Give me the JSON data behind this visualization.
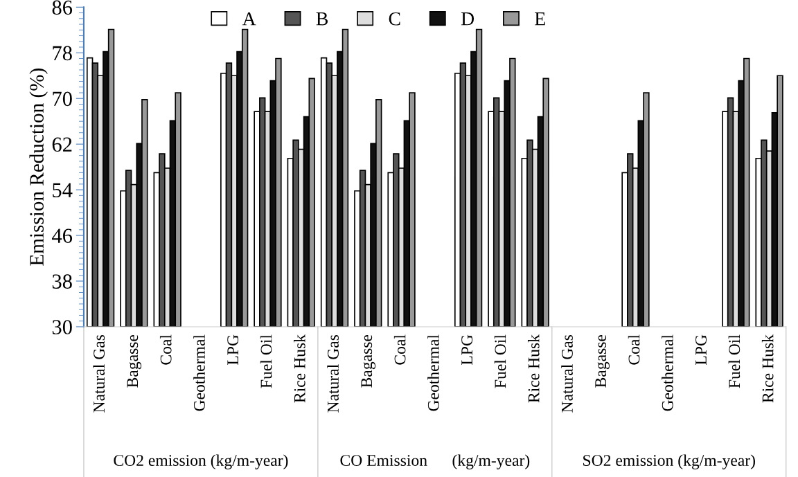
{
  "chart_data": {
    "type": "bar",
    "ylabel": "Emission Reduction (%)",
    "categories": [
      "Natural Gas",
      "Bagasse",
      "Coal",
      "Geothermal",
      "LPG",
      "Fuel Oil",
      "Rice Husk",
      "Natural Gas",
      "Bagasse",
      "Coal",
      "Geothermal",
      "LPG",
      "Fuel Oil",
      "Rice Husk",
      "Natural Gas",
      "Bagasse",
      "Coal",
      "Geothermal",
      "LPG",
      "Fuel Oil",
      "Rice Husk"
    ],
    "series": [
      {
        "name": "A",
        "color": "#ffffff",
        "values": [
          77.1,
          53.8,
          57.0,
          30,
          74.4,
          67.7,
          59.5,
          77.1,
          53.8,
          57.0,
          30,
          74.4,
          67.7,
          59.5,
          null,
          null,
          57.0,
          30,
          30,
          67.7,
          59.5
        ]
      },
      {
        "name": "B",
        "color": "#555555",
        "values": [
          76.2,
          57.4,
          60.3,
          30,
          76.2,
          70.1,
          62.7,
          76.2,
          57.4,
          60.3,
          30,
          76.2,
          70.1,
          62.7,
          null,
          null,
          60.3,
          30,
          30,
          70.1,
          62.7
        ]
      },
      {
        "name": "C",
        "color": "#dddddd",
        "values": [
          74.0,
          54.9,
          57.8,
          30,
          74.0,
          67.7,
          61.1,
          74.0,
          54.9,
          57.8,
          30,
          74.0,
          67.7,
          61.1,
          null,
          null,
          57.8,
          30,
          30,
          67.7,
          60.8
        ]
      },
      {
        "name": "D",
        "color": "#111111",
        "values": [
          78.2,
          62.1,
          66.1,
          30,
          78.2,
          73.1,
          66.8,
          78.2,
          62.1,
          66.1,
          30,
          78.2,
          73.1,
          66.8,
          null,
          null,
          66.1,
          30,
          30,
          73.1,
          67.5
        ]
      },
      {
        "name": "E",
        "color": "#999999",
        "values": [
          82.1,
          69.8,
          71.0,
          30,
          82.1,
          77.0,
          73.5,
          82.1,
          69.8,
          71.0,
          30,
          82.1,
          77.0,
          73.5,
          null,
          null,
          71.0,
          30,
          30,
          77.0,
          74.0
        ]
      }
    ],
    "ylim": [
      30,
      86
    ],
    "yticks": [
      30,
      38,
      46,
      54,
      62,
      70,
      78,
      86
    ],
    "annotations": [
      "CO2 emission (kg/m-year)",
      "CO Emission      (kg/m-year)",
      "SO2 emission (kg/m-year)"
    ],
    "legend": "top",
    "grid": false
  }
}
